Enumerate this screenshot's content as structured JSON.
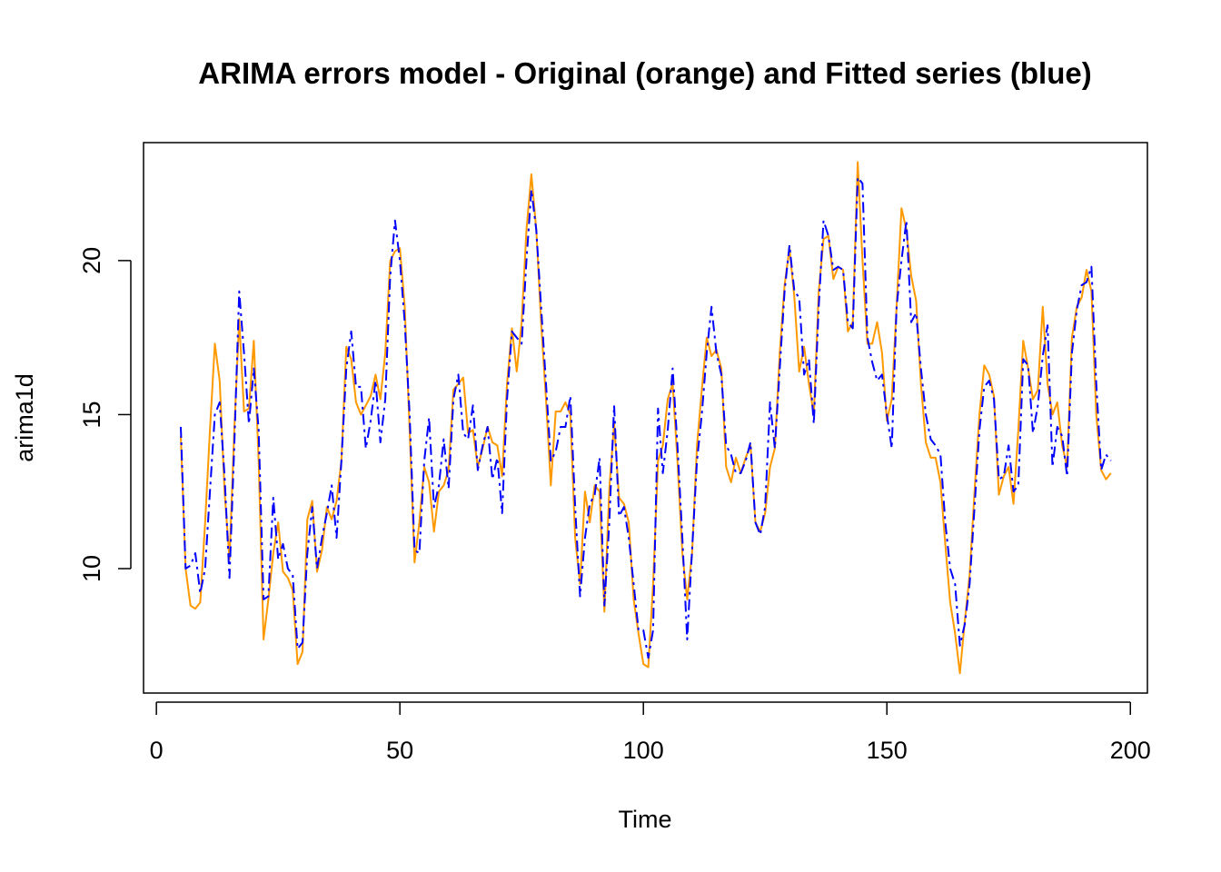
{
  "chart_data": {
    "type": "line",
    "title": "ARIMA errors model - Original (orange) and Fitted series (blue)",
    "xlabel": "Time",
    "ylabel": "arima1d",
    "xlim": [
      -2.64,
      203.5
    ],
    "ylim": [
      5.96,
      23.83
    ],
    "x_ticks": [
      "0",
      "50",
      "100",
      "150",
      "200"
    ],
    "y_ticks": [
      "10",
      "15",
      "20"
    ],
    "grid": false,
    "x_start": 5,
    "series": [
      {
        "name": "Original",
        "color": "#FF9900",
        "style": "solid",
        "values": [
          14.3,
          10.0,
          8.8,
          8.7,
          8.9,
          11.5,
          14.5,
          17.3,
          16.1,
          12.5,
          10.3,
          14.5,
          18.1,
          15.1,
          15.2,
          17.4,
          13.5,
          7.7,
          9.0,
          10.5,
          11.5,
          9.9,
          9.7,
          9.3,
          6.9,
          7.3,
          11.6,
          12.2,
          9.9,
          10.6,
          12.0,
          11.6,
          12.2,
          13.5,
          17.2,
          16.8,
          15.4,
          15.0,
          15.3,
          15.6,
          16.3,
          15.5,
          17.0,
          20.0,
          20.3,
          20.4,
          18.5,
          14.5,
          10.2,
          11.5,
          13.3,
          12.8,
          11.2,
          12.5,
          12.7,
          13.2,
          15.8,
          16.0,
          16.2,
          14.4,
          14.5,
          13.3,
          13.9,
          14.6,
          14.1,
          14.0,
          13.0,
          16.0,
          17.8,
          16.4,
          18.0,
          21.0,
          22.8,
          21.0,
          18.0,
          15.5,
          12.7,
          15.1,
          15.1,
          15.4,
          15.0,
          11.0,
          9.5,
          12.5,
          11.5,
          12.7,
          12.5,
          8.6,
          12.6,
          14.7,
          12.3,
          12.1,
          11.5,
          9.0,
          7.9,
          6.9,
          6.8,
          9.5,
          13.5,
          14.0,
          15.5,
          16.0,
          13.5,
          10.5,
          9.0,
          10.5,
          14.0,
          15.8,
          17.5,
          16.9,
          17.1,
          16.5,
          13.3,
          12.8,
          13.6,
          13.1,
          13.6,
          14.0,
          11.5,
          11.2,
          11.8,
          13.3,
          13.9,
          17.0,
          19.2,
          20.4,
          18.8,
          16.4,
          17.2,
          16.0,
          15.0,
          19.0,
          20.7,
          20.8,
          19.4,
          19.8,
          19.7,
          17.7,
          18.0,
          23.2,
          20.0,
          17.3,
          17.3,
          18.0,
          17.0,
          14.8,
          15.5,
          18.5,
          21.7,
          21.0,
          19.5,
          18.7,
          16.0,
          14.1,
          13.6,
          13.6,
          12.8,
          10.8,
          8.9,
          7.9,
          6.6,
          8.3,
          9.8,
          12.5,
          15.0,
          16.6,
          16.3,
          15.6,
          12.4,
          13.0,
          13.3,
          12.1,
          14.5,
          17.4,
          16.5,
          15.5,
          15.8,
          18.5,
          16.0,
          15.0,
          15.4,
          14.0,
          13.3,
          17.5,
          18.5,
          18.8,
          19.7,
          19.0,
          15.0,
          13.2,
          12.9,
          13.1
        ]
      },
      {
        "name": "Fitted",
        "color": "#0000FF",
        "style": "dashdot",
        "values": [
          14.6,
          10.0,
          10.1,
          10.5,
          9.2,
          10.0,
          12.5,
          15.0,
          15.4,
          13.0,
          9.7,
          14.0,
          19.0,
          17.0,
          14.7,
          16.5,
          14.5,
          9.0,
          9.1,
          12.3,
          10.3,
          10.8,
          10.0,
          9.8,
          7.4,
          7.6,
          10.5,
          12.0,
          10.0,
          11.0,
          11.8,
          12.7,
          11.0,
          13.5,
          16.5,
          17.7,
          15.9,
          15.9,
          13.9,
          14.8,
          16.1,
          14.1,
          15.5,
          19.5,
          21.3,
          20.0,
          18.0,
          15.0,
          10.6,
          10.5,
          13.5,
          14.9,
          12.0,
          12.7,
          14.2,
          12.6,
          15.5,
          16.3,
          14.4,
          14.2,
          15.3,
          13.2,
          14.0,
          14.6,
          12.9,
          13.6,
          11.8,
          15.5,
          17.7,
          17.5,
          17.3,
          20.0,
          22.3,
          21.0,
          18.5,
          16.0,
          13.5,
          13.8,
          14.6,
          14.6,
          15.6,
          12.0,
          9.1,
          11.0,
          12.1,
          12.4,
          13.6,
          8.8,
          11.5,
          15.3,
          11.7,
          12.0,
          11.0,
          9.5,
          8.0,
          8.0,
          7.1,
          8.0,
          15.2,
          13.1,
          14.5,
          16.5,
          14.0,
          11.0,
          7.7,
          10.6,
          13.5,
          15.0,
          17.0,
          18.5,
          17.0,
          16.3,
          14.0,
          13.7,
          13.1,
          13.1,
          13.5,
          14.1,
          11.5,
          11.1,
          12.0,
          15.4,
          13.9,
          16.5,
          19.0,
          20.5,
          19.0,
          18.8,
          16.3,
          16.8,
          14.7,
          18.5,
          21.3,
          20.8,
          19.7,
          19.8,
          19.7,
          18.0,
          17.8,
          22.7,
          22.5,
          17.5,
          16.7,
          16.1,
          16.3,
          15.0,
          13.9,
          18.5,
          20.0,
          21.3,
          18.0,
          18.3,
          16.5,
          15.0,
          14.2,
          14.0,
          13.7,
          11.5,
          10.0,
          9.5,
          7.5,
          8.2,
          9.5,
          12.0,
          14.5,
          15.9,
          16.1,
          15.5,
          12.9,
          13.0,
          14.0,
          12.5,
          12.7,
          16.8,
          16.6,
          14.4,
          15.3,
          16.9,
          17.9,
          13.3,
          14.6,
          14.3,
          13.0,
          17.0,
          18.4,
          19.2,
          19.3,
          19.8,
          16.0,
          13.2,
          13.7,
          13.5
        ]
      }
    ]
  }
}
